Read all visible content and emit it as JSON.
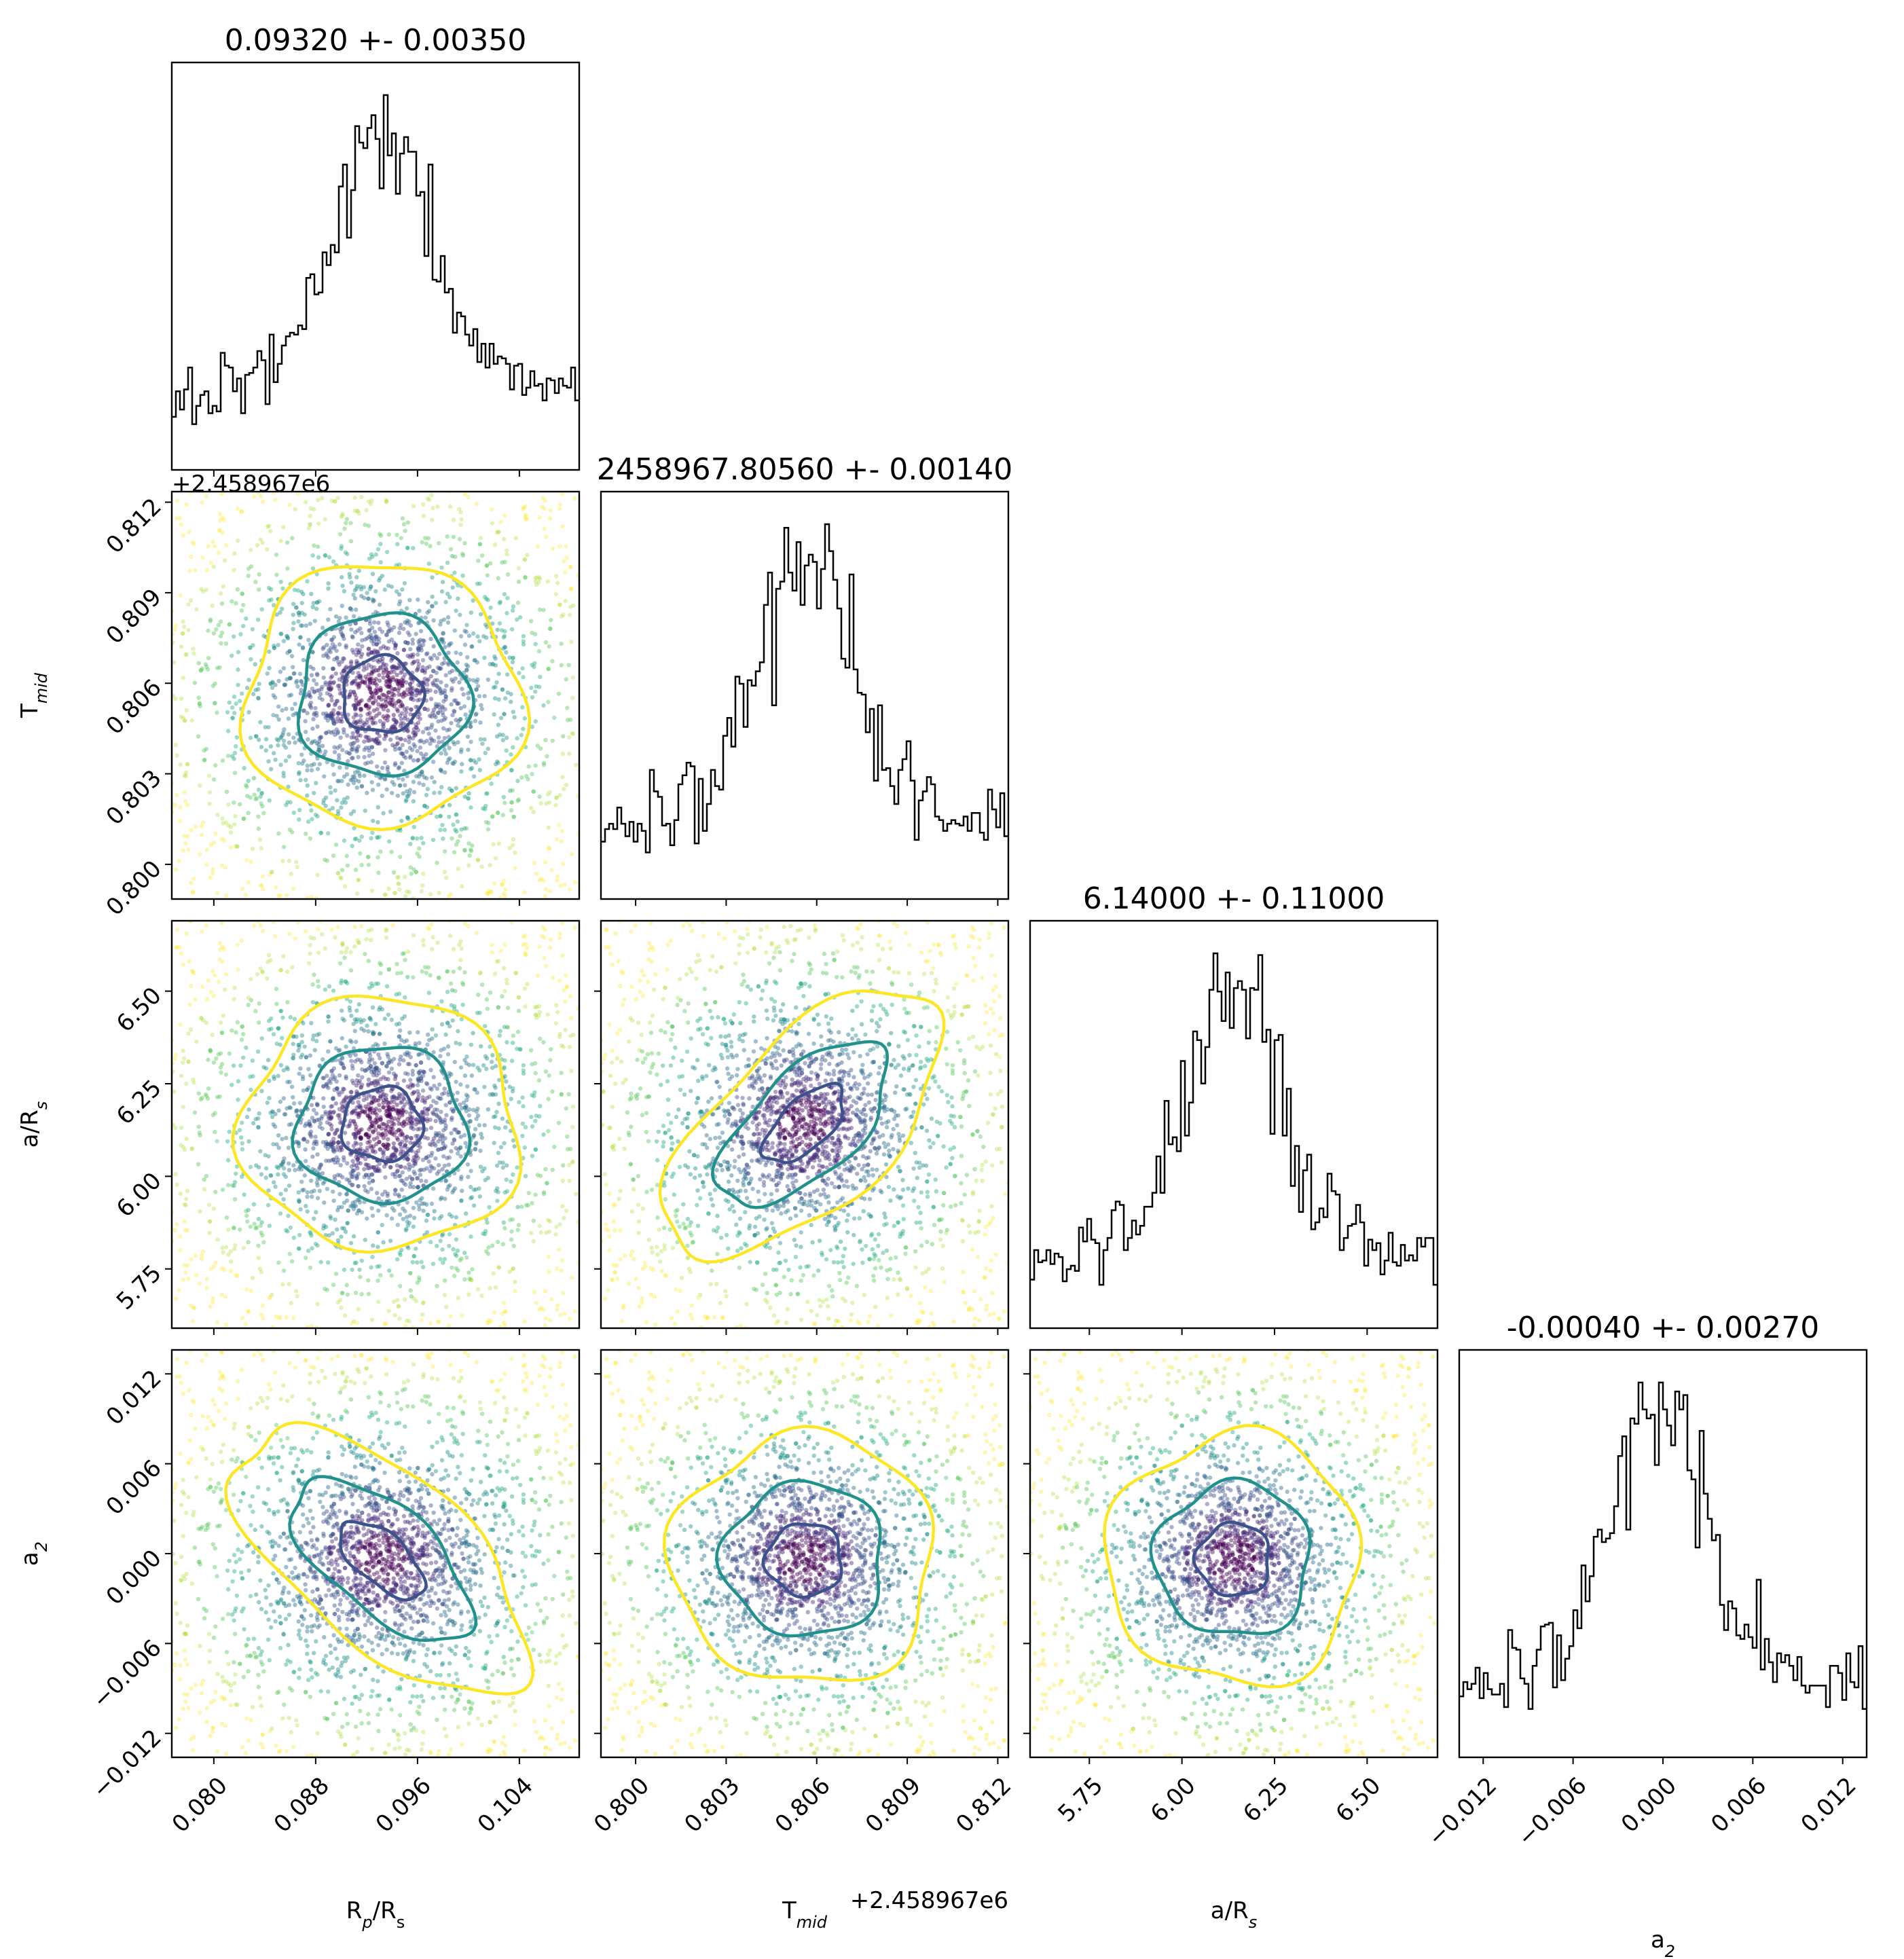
{
  "chart_data": {
    "type": "corner",
    "parameters": [
      {
        "label": "R",
        "sub": "p",
        "label_tail": "/R",
        "sub_tail": "s",
        "title": "0.09320 +- 0.00350",
        "center": 0.0932,
        "sigma": 0.0035,
        "range": [
          0.0767,
          0.1087
        ],
        "ticks": [
          "0.080",
          "0.088",
          "0.096",
          "0.104"
        ],
        "offset_text": ""
      },
      {
        "label": "T",
        "sub": "mid",
        "label_tail": "",
        "sub_tail": "",
        "title": "2458967.80560 +- 0.00140",
        "center": 0.8056,
        "sigma": 0.0014,
        "range": [
          0.79885,
          0.81235
        ],
        "ticks": [
          "0.800",
          "0.803",
          "0.806",
          "0.809",
          "0.812"
        ],
        "offset_text": "+2.458967e6"
      },
      {
        "label": "a/R",
        "sub": "s",
        "label_tail": "",
        "sub_tail": "",
        "title": "6.14000 +- 0.11000",
        "center": 6.14,
        "sigma": 0.11,
        "range": [
          5.59,
          6.69
        ],
        "ticks": [
          "5.75",
          "6.00",
          "6.25",
          "6.50"
        ],
        "offset_text": ""
      },
      {
        "label": "a",
        "sub": "2",
        "label_tail": "",
        "sub_tail": "",
        "title": "-0.00040 +- 0.00270",
        "center": -0.0004,
        "sigma": 0.0027,
        "range": [
          -0.0136,
          0.0136
        ],
        "ticks": [
          "−0.012",
          "−0.006",
          "0.000",
          "0.006",
          "0.012"
        ],
        "offset_text": ""
      }
    ],
    "contour_levels": [
      "1-sigma",
      "2-sigma",
      "3-sigma"
    ],
    "colors": {
      "histogram": "#000000",
      "contours": [
        "#3b528b",
        "#21918c",
        "#fde725"
      ],
      "points_palette": [
        "#440154",
        "#472d7b",
        "#3b528b",
        "#2c728e",
        "#21918c",
        "#28ae80",
        "#5ec962",
        "#addc30",
        "#fde725"
      ]
    }
  }
}
